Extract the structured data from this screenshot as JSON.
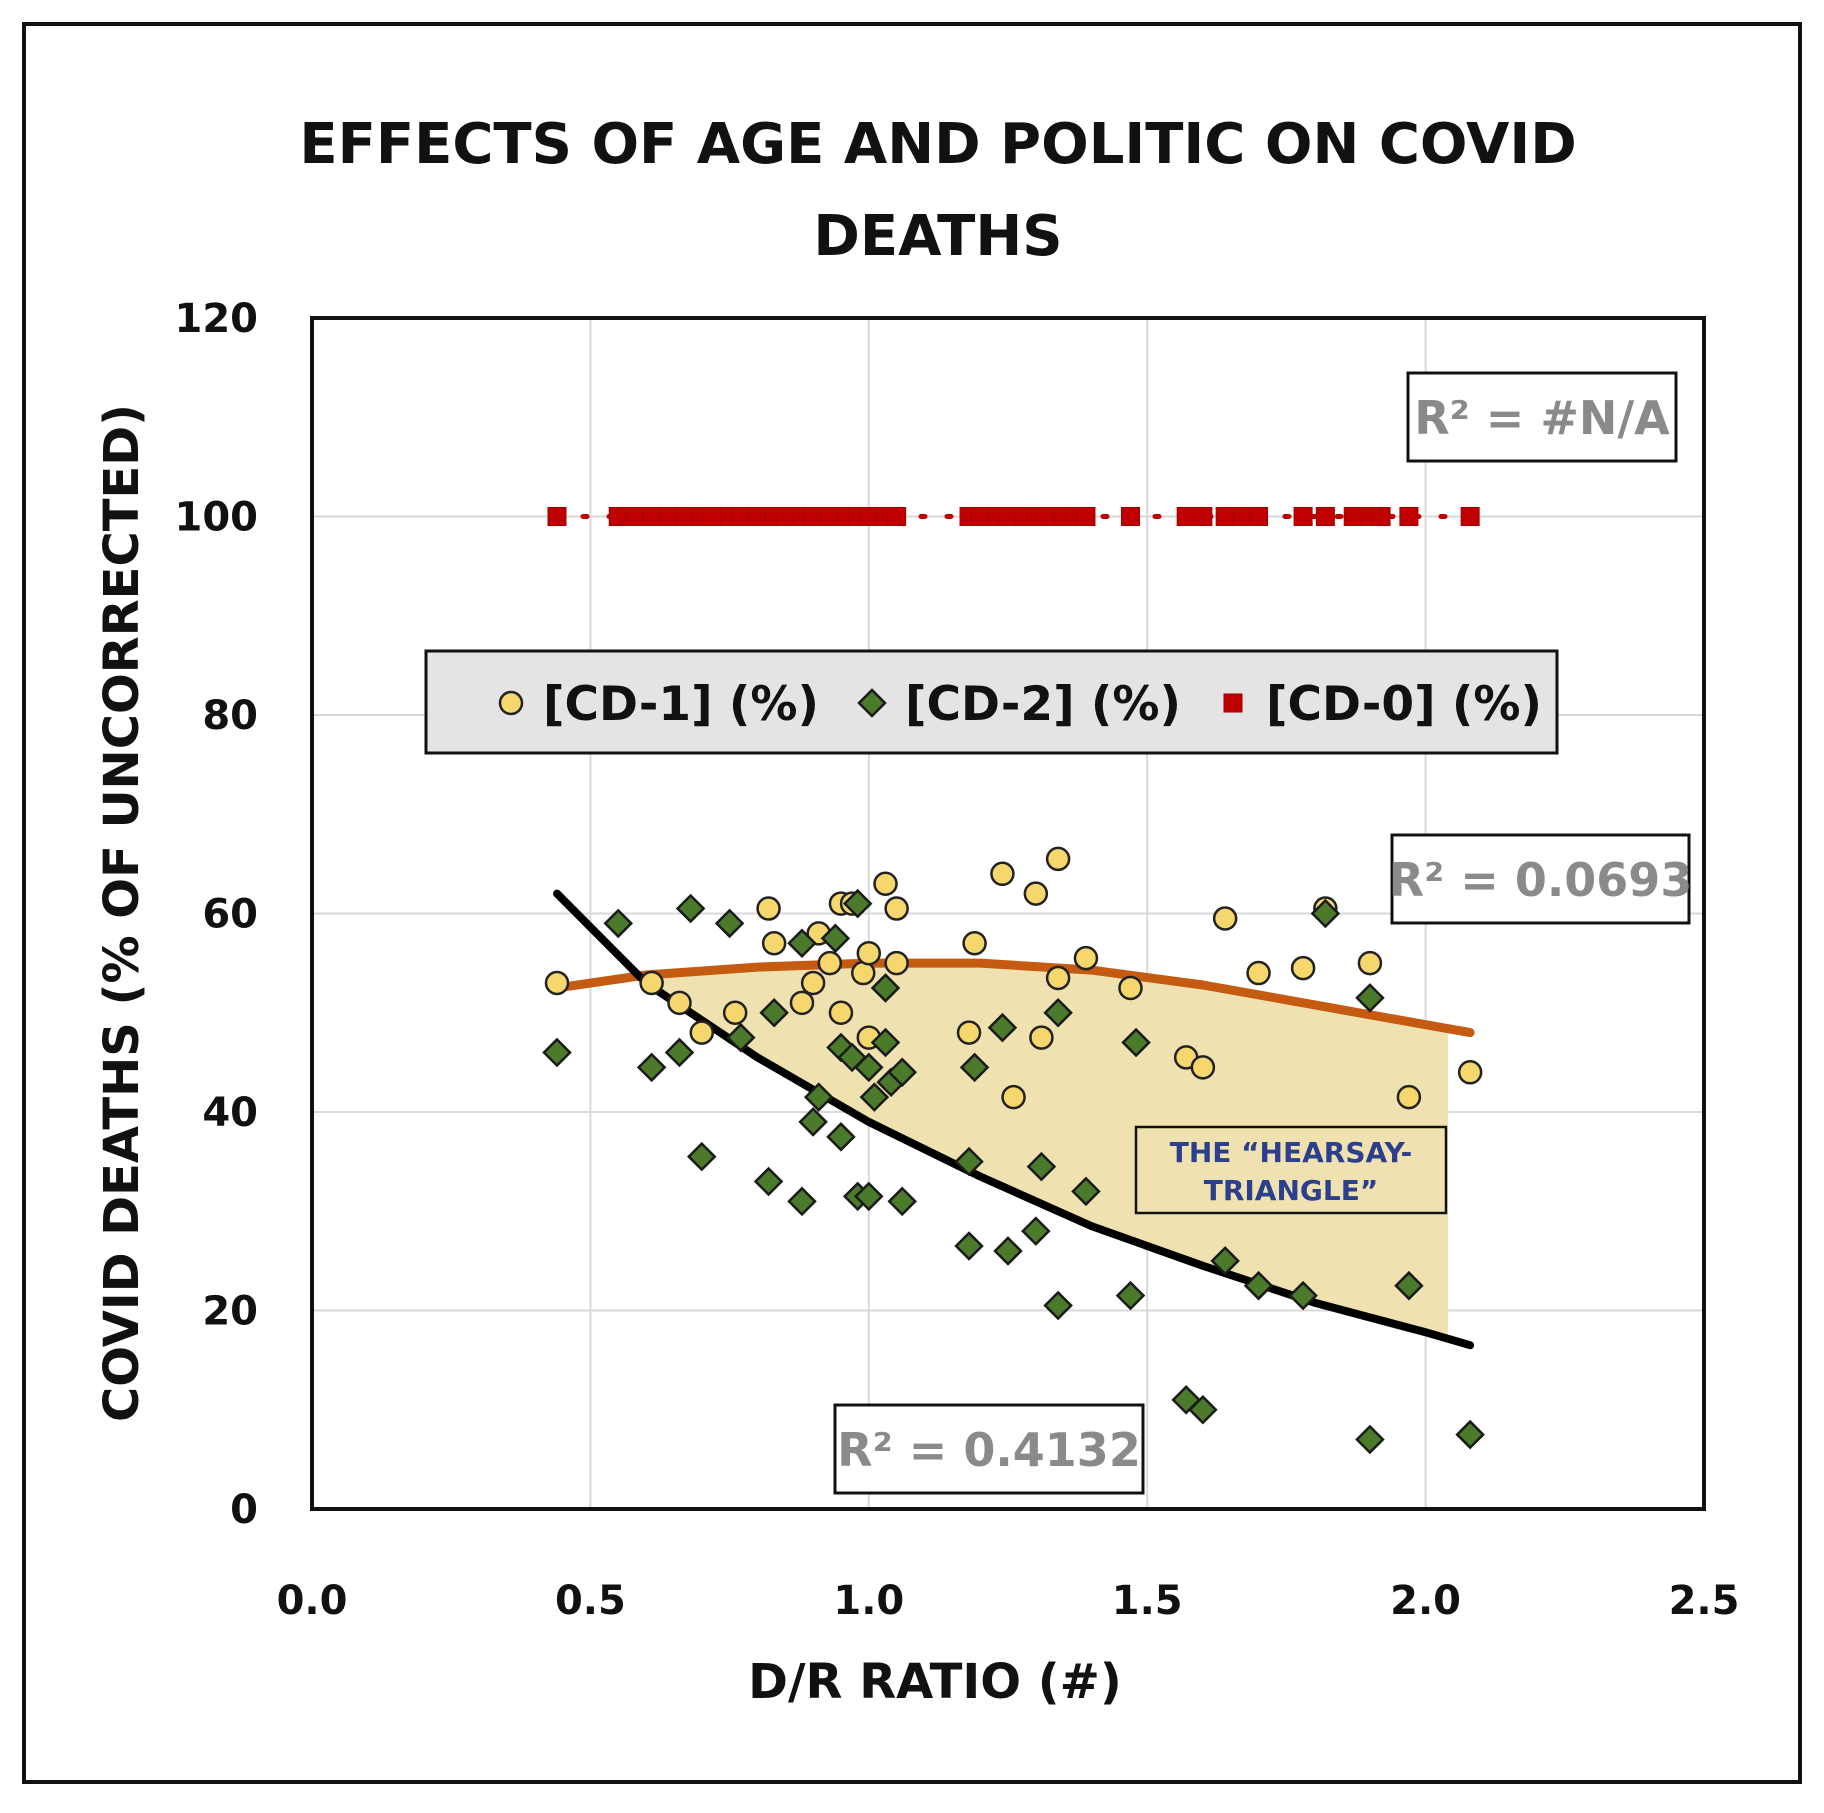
{
  "chart_data": {
    "type": "scatter",
    "title_lines": [
      "EFFECTS OF AGE AND POLITIC ON COVID",
      "DEATHS"
    ],
    "xlabel": "D/R RATIO (#)",
    "ylabel": "COVID DEATHS (% OF UNCORRECTED)",
    "xlim": [
      0.0,
      2.5
    ],
    "ylim": [
      0,
      120
    ],
    "x_ticks": [
      "0.0",
      "0.5",
      "1.0",
      "1.5",
      "2.0",
      "2.5"
    ],
    "y_ticks": [
      "0",
      "20",
      "40",
      "60",
      "80",
      "100",
      "120"
    ],
    "grid": true,
    "legend_position": "middle",
    "colors": {
      "cd1_fill": "#f5d76e",
      "cd2_fill": "#4a7a2a",
      "cd0_fill": "#c00000",
      "cd1_trend": "#c55a11",
      "cd2_trend": "#000000",
      "triangle_fill": "#f0e2b0"
    },
    "series": [
      {
        "name": "[CD-1] (%)",
        "marker": "circle",
        "points": [
          [
            0.44,
            53
          ],
          [
            0.61,
            53
          ],
          [
            0.66,
            51
          ],
          [
            0.7,
            48
          ],
          [
            0.76,
            50
          ],
          [
            0.82,
            60.5
          ],
          [
            0.83,
            57
          ],
          [
            0.88,
            51
          ],
          [
            0.9,
            53
          ],
          [
            0.91,
            58
          ],
          [
            0.93,
            55
          ],
          [
            0.95,
            61
          ],
          [
            0.95,
            50
          ],
          [
            0.97,
            61
          ],
          [
            0.99,
            54
          ],
          [
            1.0,
            56
          ],
          [
            1.0,
            47.5
          ],
          [
            1.03,
            63
          ],
          [
            1.05,
            60.5
          ],
          [
            1.05,
            55
          ],
          [
            1.18,
            48
          ],
          [
            1.19,
            57
          ],
          [
            1.24,
            64
          ],
          [
            1.26,
            41.5
          ],
          [
            1.3,
            62
          ],
          [
            1.31,
            47.5
          ],
          [
            1.34,
            53.5
          ],
          [
            1.34,
            65.5
          ],
          [
            1.39,
            55.5
          ],
          [
            1.47,
            52.5
          ],
          [
            1.57,
            45.5
          ],
          [
            1.6,
            44.5
          ],
          [
            1.64,
            59.5
          ],
          [
            1.7,
            54
          ],
          [
            1.78,
            54.5
          ],
          [
            1.82,
            60.5
          ],
          [
            1.9,
            55
          ],
          [
            1.97,
            41.5
          ],
          [
            2.08,
            44
          ]
        ]
      },
      {
        "name": "[CD-2] (%)",
        "marker": "diamond",
        "points": [
          [
            0.44,
            46
          ],
          [
            0.55,
            59
          ],
          [
            0.61,
            44.5
          ],
          [
            0.66,
            46
          ],
          [
            0.68,
            60.5
          ],
          [
            0.7,
            35.5
          ],
          [
            0.75,
            59
          ],
          [
            0.77,
            47.5
          ],
          [
            0.82,
            33
          ],
          [
            0.83,
            50
          ],
          [
            0.88,
            31
          ],
          [
            0.88,
            57
          ],
          [
            0.9,
            39
          ],
          [
            0.91,
            41.5
          ],
          [
            0.94,
            57.5
          ],
          [
            0.95,
            46.5
          ],
          [
            0.95,
            37.5
          ],
          [
            0.97,
            45.5
          ],
          [
            0.98,
            61
          ],
          [
            0.98,
            31.5
          ],
          [
            1.0,
            44.5
          ],
          [
            1.0,
            31.5
          ],
          [
            1.01,
            41.5
          ],
          [
            1.03,
            52.5
          ],
          [
            1.03,
            47
          ],
          [
            1.04,
            43
          ],
          [
            1.06,
            44
          ],
          [
            1.06,
            31
          ],
          [
            1.18,
            35
          ],
          [
            1.18,
            26.5
          ],
          [
            1.19,
            44.5
          ],
          [
            1.24,
            48.5
          ],
          [
            1.25,
            26
          ],
          [
            1.3,
            28
          ],
          [
            1.31,
            34.5
          ],
          [
            1.34,
            20.5
          ],
          [
            1.34,
            50
          ],
          [
            1.39,
            32
          ],
          [
            1.47,
            21.5
          ],
          [
            1.48,
            47
          ],
          [
            1.57,
            11
          ],
          [
            1.6,
            10
          ],
          [
            1.64,
            25
          ],
          [
            1.7,
            22.5
          ],
          [
            1.78,
            21.5
          ],
          [
            1.82,
            60
          ],
          [
            1.9,
            51.5
          ],
          [
            1.9,
            7
          ],
          [
            1.97,
            22.5
          ],
          [
            2.08,
            7.5
          ]
        ]
      },
      {
        "name": "[CD-0] (%)",
        "marker": "square",
        "points": [
          [
            0.44,
            100
          ],
          [
            0.55,
            100
          ],
          [
            0.58,
            100
          ],
          [
            0.61,
            100
          ],
          [
            0.64,
            100
          ],
          [
            0.67,
            100
          ],
          [
            0.7,
            100
          ],
          [
            0.72,
            100
          ],
          [
            0.75,
            100
          ],
          [
            0.77,
            100
          ],
          [
            0.8,
            100
          ],
          [
            0.83,
            100
          ],
          [
            0.85,
            100
          ],
          [
            0.88,
            100
          ],
          [
            0.9,
            100
          ],
          [
            0.93,
            100
          ],
          [
            0.96,
            100
          ],
          [
            0.98,
            100
          ],
          [
            1.0,
            100
          ],
          [
            1.03,
            100
          ],
          [
            1.05,
            100
          ],
          [
            1.18,
            100
          ],
          [
            1.2,
            100
          ],
          [
            1.23,
            100
          ],
          [
            1.25,
            100
          ],
          [
            1.28,
            100
          ],
          [
            1.3,
            100
          ],
          [
            1.32,
            100
          ],
          [
            1.35,
            100
          ],
          [
            1.37,
            100
          ],
          [
            1.39,
            100
          ],
          [
            1.47,
            100
          ],
          [
            1.57,
            100
          ],
          [
            1.6,
            100
          ],
          [
            1.64,
            100
          ],
          [
            1.67,
            100
          ],
          [
            1.7,
            100
          ],
          [
            1.78,
            100
          ],
          [
            1.82,
            100
          ],
          [
            1.87,
            100
          ],
          [
            1.9,
            100
          ],
          [
            1.92,
            100
          ],
          [
            1.97,
            100
          ],
          [
            2.08,
            100
          ]
        ]
      }
    ],
    "trendlines": [
      {
        "series": "[CD-1] (%)",
        "r2": "R² = 0.0693",
        "points": [
          [
            0.44,
            52.5
          ],
          [
            0.6,
            53.8
          ],
          [
            0.8,
            54.6
          ],
          [
            1.0,
            55
          ],
          [
            1.2,
            55
          ],
          [
            1.4,
            54.3
          ],
          [
            1.6,
            52.8
          ],
          [
            1.8,
            50.8
          ],
          [
            2.0,
            48.8
          ],
          [
            2.08,
            48
          ]
        ]
      },
      {
        "series": "[CD-2] (%)",
        "r2": "R² = 0.4132",
        "points": [
          [
            0.44,
            62
          ],
          [
            0.6,
            53
          ],
          [
            0.8,
            45.5
          ],
          [
            1.0,
            39
          ],
          [
            1.2,
            33.5
          ],
          [
            1.4,
            28.5
          ],
          [
            1.6,
            24.5
          ],
          [
            1.8,
            20.8
          ],
          [
            2.0,
            17.8
          ],
          [
            2.08,
            16.5
          ]
        ]
      },
      {
        "series": "[CD-0] (%)",
        "r2": "R² = #N/A",
        "points": [
          [
            0.44,
            100
          ],
          [
            2.08,
            100
          ]
        ]
      }
    ],
    "annotation_box": {
      "lines": [
        "THE “HEARSAY-",
        "TRIANGLE”"
      ]
    }
  }
}
